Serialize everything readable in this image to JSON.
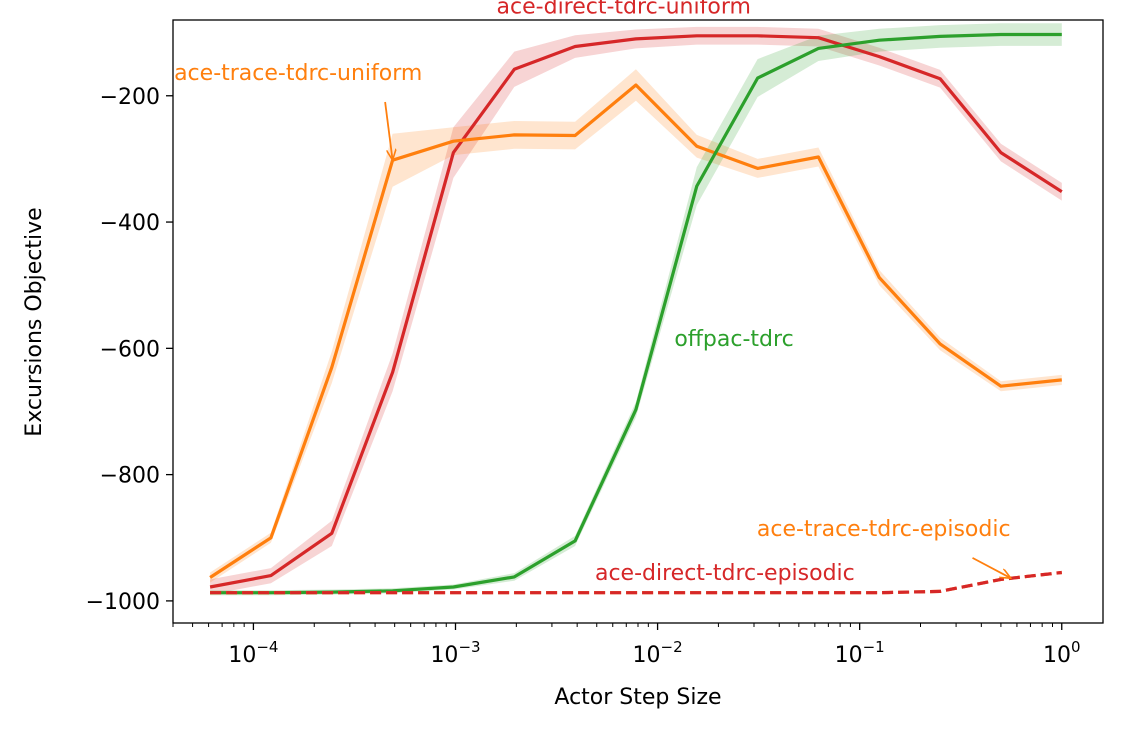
{
  "chart_data": {
    "type": "line",
    "title": "",
    "xlabel": "Actor Step Size",
    "ylabel": "Excursions Objective",
    "xscale": "log",
    "xlim": [
      4e-05,
      1.6
    ],
    "ylim": [
      -1035,
      -80
    ],
    "grid": false,
    "x_ticks": [
      {
        "value": 0.0001,
        "base": "10",
        "exp": "−4"
      },
      {
        "value": 0.001,
        "base": "10",
        "exp": "−3"
      },
      {
        "value": 0.01,
        "base": "10",
        "exp": "−2"
      },
      {
        "value": 0.1,
        "base": "10",
        "exp": "−1"
      },
      {
        "value": 1,
        "base": "10",
        "exp": "0"
      }
    ],
    "y_ticks": [
      {
        "value": -200,
        "label": "−200"
      },
      {
        "value": -400,
        "label": "−400"
      },
      {
        "value": -600,
        "label": "−600"
      },
      {
        "value": -800,
        "label": "−800"
      },
      {
        "value": -1000,
        "label": "−1000"
      }
    ],
    "x": [
      6.103515625e-05,
      0.0001220703125,
      0.000244140625,
      0.00048828125,
      0.0009765625,
      0.001953125,
      0.00390625,
      0.0078125,
      0.015625,
      0.03125,
      0.0625,
      0.125,
      0.25,
      0.5,
      1.0
    ],
    "series": [
      {
        "name": "ace-direct-tdrc-uniform",
        "color": "#d62728",
        "dashed": false,
        "values": [
          -978,
          -960,
          -893,
          -638,
          -290,
          -158,
          -122,
          -110,
          -105,
          -105,
          -108,
          -138,
          -173,
          -290,
          -352
        ],
        "band": [
          12,
          12,
          20,
          30,
          40,
          28,
          18,
          15,
          14,
          14,
          14,
          14,
          14,
          14,
          14
        ]
      },
      {
        "name": "ace-trace-tdrc-uniform",
        "color": "#ff7f0e",
        "dashed": false,
        "values": [
          -963,
          -900,
          -630,
          -302,
          -272,
          -262,
          -263,
          -183,
          -280,
          -315,
          -297,
          -488,
          -593,
          -660,
          -650
        ],
        "band": [
          8,
          8,
          25,
          42,
          22,
          22,
          22,
          25,
          18,
          15,
          15,
          12,
          10,
          8,
          8
        ]
      },
      {
        "name": "offpac-tdrc",
        "color": "#2ca02c",
        "dashed": false,
        "values": [
          -987,
          -987,
          -986,
          -984,
          -978,
          -962,
          -905,
          -697,
          -343,
          -172,
          -125,
          -112,
          -106,
          -103,
          -103
        ],
        "band": [
          4,
          4,
          4,
          4,
          4,
          6,
          8,
          12,
          30,
          30,
          20,
          18,
          18,
          18,
          18
        ]
      },
      {
        "name": "ace-trace-tdrc-episodic",
        "color": "#ff7f0e",
        "dashed": true,
        "values": [
          -987,
          -987,
          -987,
          -987,
          -987,
          -987,
          -987,
          -987,
          -987,
          -987,
          -987,
          -987,
          -985,
          -966,
          -955
        ],
        "band": [
          2,
          2,
          2,
          2,
          2,
          2,
          2,
          2,
          2,
          2,
          2,
          2,
          2,
          2,
          2
        ]
      },
      {
        "name": "ace-direct-tdrc-episodic",
        "color": "#d62728",
        "dashed": true,
        "values": [
          -987,
          -987,
          -987,
          -987,
          -987,
          -987,
          -987,
          -987,
          -987,
          -987,
          -987,
          -987,
          -985,
          -966,
          -955
        ],
        "band": [
          2,
          2,
          2,
          2,
          2,
          2,
          2,
          2,
          2,
          2,
          2,
          2,
          2,
          2,
          2
        ]
      }
    ],
    "annotations": [
      {
        "text": "ace-direct-tdrc-uniform",
        "color": "#d62728",
        "anchor": "middle",
        "tx": 0.0068,
        "ty": -70,
        "arrow": false
      },
      {
        "text": "ace-trace-tdrc-uniform",
        "color": "#ff7f0e",
        "anchor": "start",
        "tx": 4.05e-05,
        "ty": -175,
        "arrow": true,
        "ax": 0.00048828125,
        "ay": -302
      },
      {
        "text": "offpac-tdrc",
        "color": "#2ca02c",
        "anchor": "start",
        "tx": 0.0121,
        "ty": -596,
        "arrow": false
      },
      {
        "text": "ace-trace-tdrc-episodic",
        "color": "#ff7f0e",
        "anchor": "start",
        "tx": 0.031,
        "ty": -897,
        "arrow": true,
        "ax": 0.56,
        "ay": -964
      },
      {
        "text": "ace-direct-tdrc-episodic",
        "color": "#d62728",
        "anchor": "start",
        "tx": 0.0049,
        "ty": -967,
        "arrow": false
      }
    ]
  }
}
